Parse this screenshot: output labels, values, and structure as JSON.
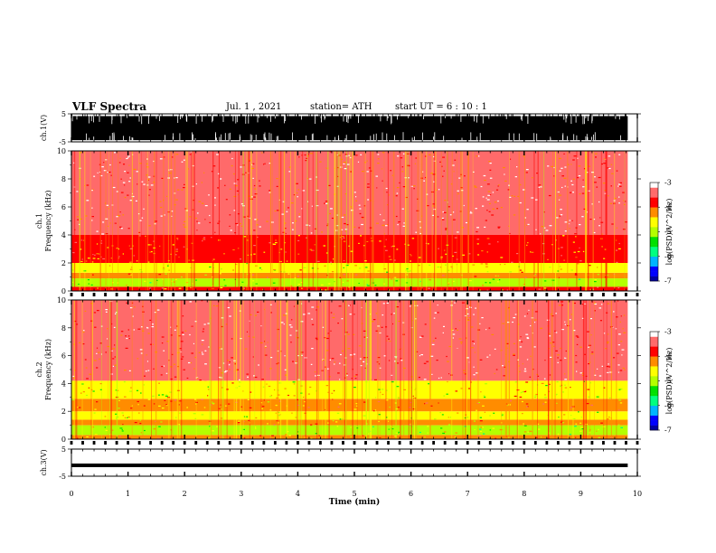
{
  "header": {
    "title": "VLF Spectra",
    "date": "Jul. 1 , 2021",
    "station": "station= ATH",
    "start": "start UT = 6 : 10 : 1"
  },
  "chart_data": [
    {
      "type": "line",
      "id": "ch1-waveform",
      "ylabel": "ch.1(V)",
      "ylim": [
        -5,
        5
      ],
      "yticks": [
        -5,
        5
      ],
      "xlim": [
        0,
        10
      ],
      "color": "#000000"
    },
    {
      "type": "heatmap",
      "id": "ch1-spectrogram",
      "ylabel": "ch.1\nFrequency (kHz)",
      "ylim": [
        0,
        10
      ],
      "yticks": [
        0,
        2,
        4,
        6,
        8,
        10
      ],
      "xlim": [
        0,
        10
      ],
      "data_xmax": 9.83,
      "bands_khz": [
        {
          "from": 0,
          "to": 0.3,
          "level": -4.0
        },
        {
          "from": 0.3,
          "to": 0.9,
          "level": -4.9
        },
        {
          "from": 0.9,
          "to": 1.3,
          "level": -4.2
        },
        {
          "from": 1.3,
          "to": 2.0,
          "level": -4.7
        },
        {
          "from": 2.0,
          "to": 4.0,
          "level": -4.0
        },
        {
          "from": 4.0,
          "to": 10.0,
          "level": -3.5
        }
      ],
      "colorbar": {
        "label": "log(PSD)(V^2/Hz)",
        "min": -7,
        "max": -3,
        "ticks": [
          -3,
          -4,
          -5,
          -6,
          -7
        ]
      }
    },
    {
      "type": "heatmap",
      "id": "ch2-spectrogram",
      "ylabel": "ch.2\nFrequency (kHz)",
      "ylim": [
        0,
        10
      ],
      "yticks": [
        0,
        2,
        4,
        6,
        8,
        10
      ],
      "xlim": [
        0,
        10
      ],
      "data_xmax": 9.83,
      "bands_khz": [
        {
          "from": 0,
          "to": 0.3,
          "level": -4.2
        },
        {
          "from": 0.3,
          "to": 1.0,
          "level": -4.9
        },
        {
          "from": 1.0,
          "to": 1.4,
          "level": -4.3
        },
        {
          "from": 1.4,
          "to": 2.0,
          "level": -4.8
        },
        {
          "from": 2.0,
          "to": 2.9,
          "level": -4.1
        },
        {
          "from": 2.9,
          "to": 4.2,
          "level": -4.6
        },
        {
          "from": 4.2,
          "to": 10.0,
          "level": -3.5
        }
      ],
      "colorbar": {
        "label": "log(PSD)(V^2/Hz)",
        "min": -7,
        "max": -3,
        "ticks": [
          -3,
          -4,
          -5,
          -6,
          -7
        ]
      }
    },
    {
      "type": "line",
      "id": "ch3-waveform",
      "ylabel": "ch.3(V)",
      "ylim": [
        -5,
        5
      ],
      "yticks": [
        -5,
        5
      ],
      "xlim": [
        0,
        10
      ],
      "level": -1,
      "color": "#000000"
    }
  ],
  "xaxis": {
    "label": "Time (min)",
    "ticks": [
      0,
      1,
      2,
      3,
      4,
      5,
      6,
      7,
      8,
      9,
      10
    ]
  },
  "colormap": [
    "#0000a0",
    "#0000ff",
    "#00b4ff",
    "#00ff80",
    "#00e000",
    "#b4ff00",
    "#ffff00",
    "#ff8c00",
    "#ff0000",
    "#ff6a6a",
    "#ffffff"
  ]
}
